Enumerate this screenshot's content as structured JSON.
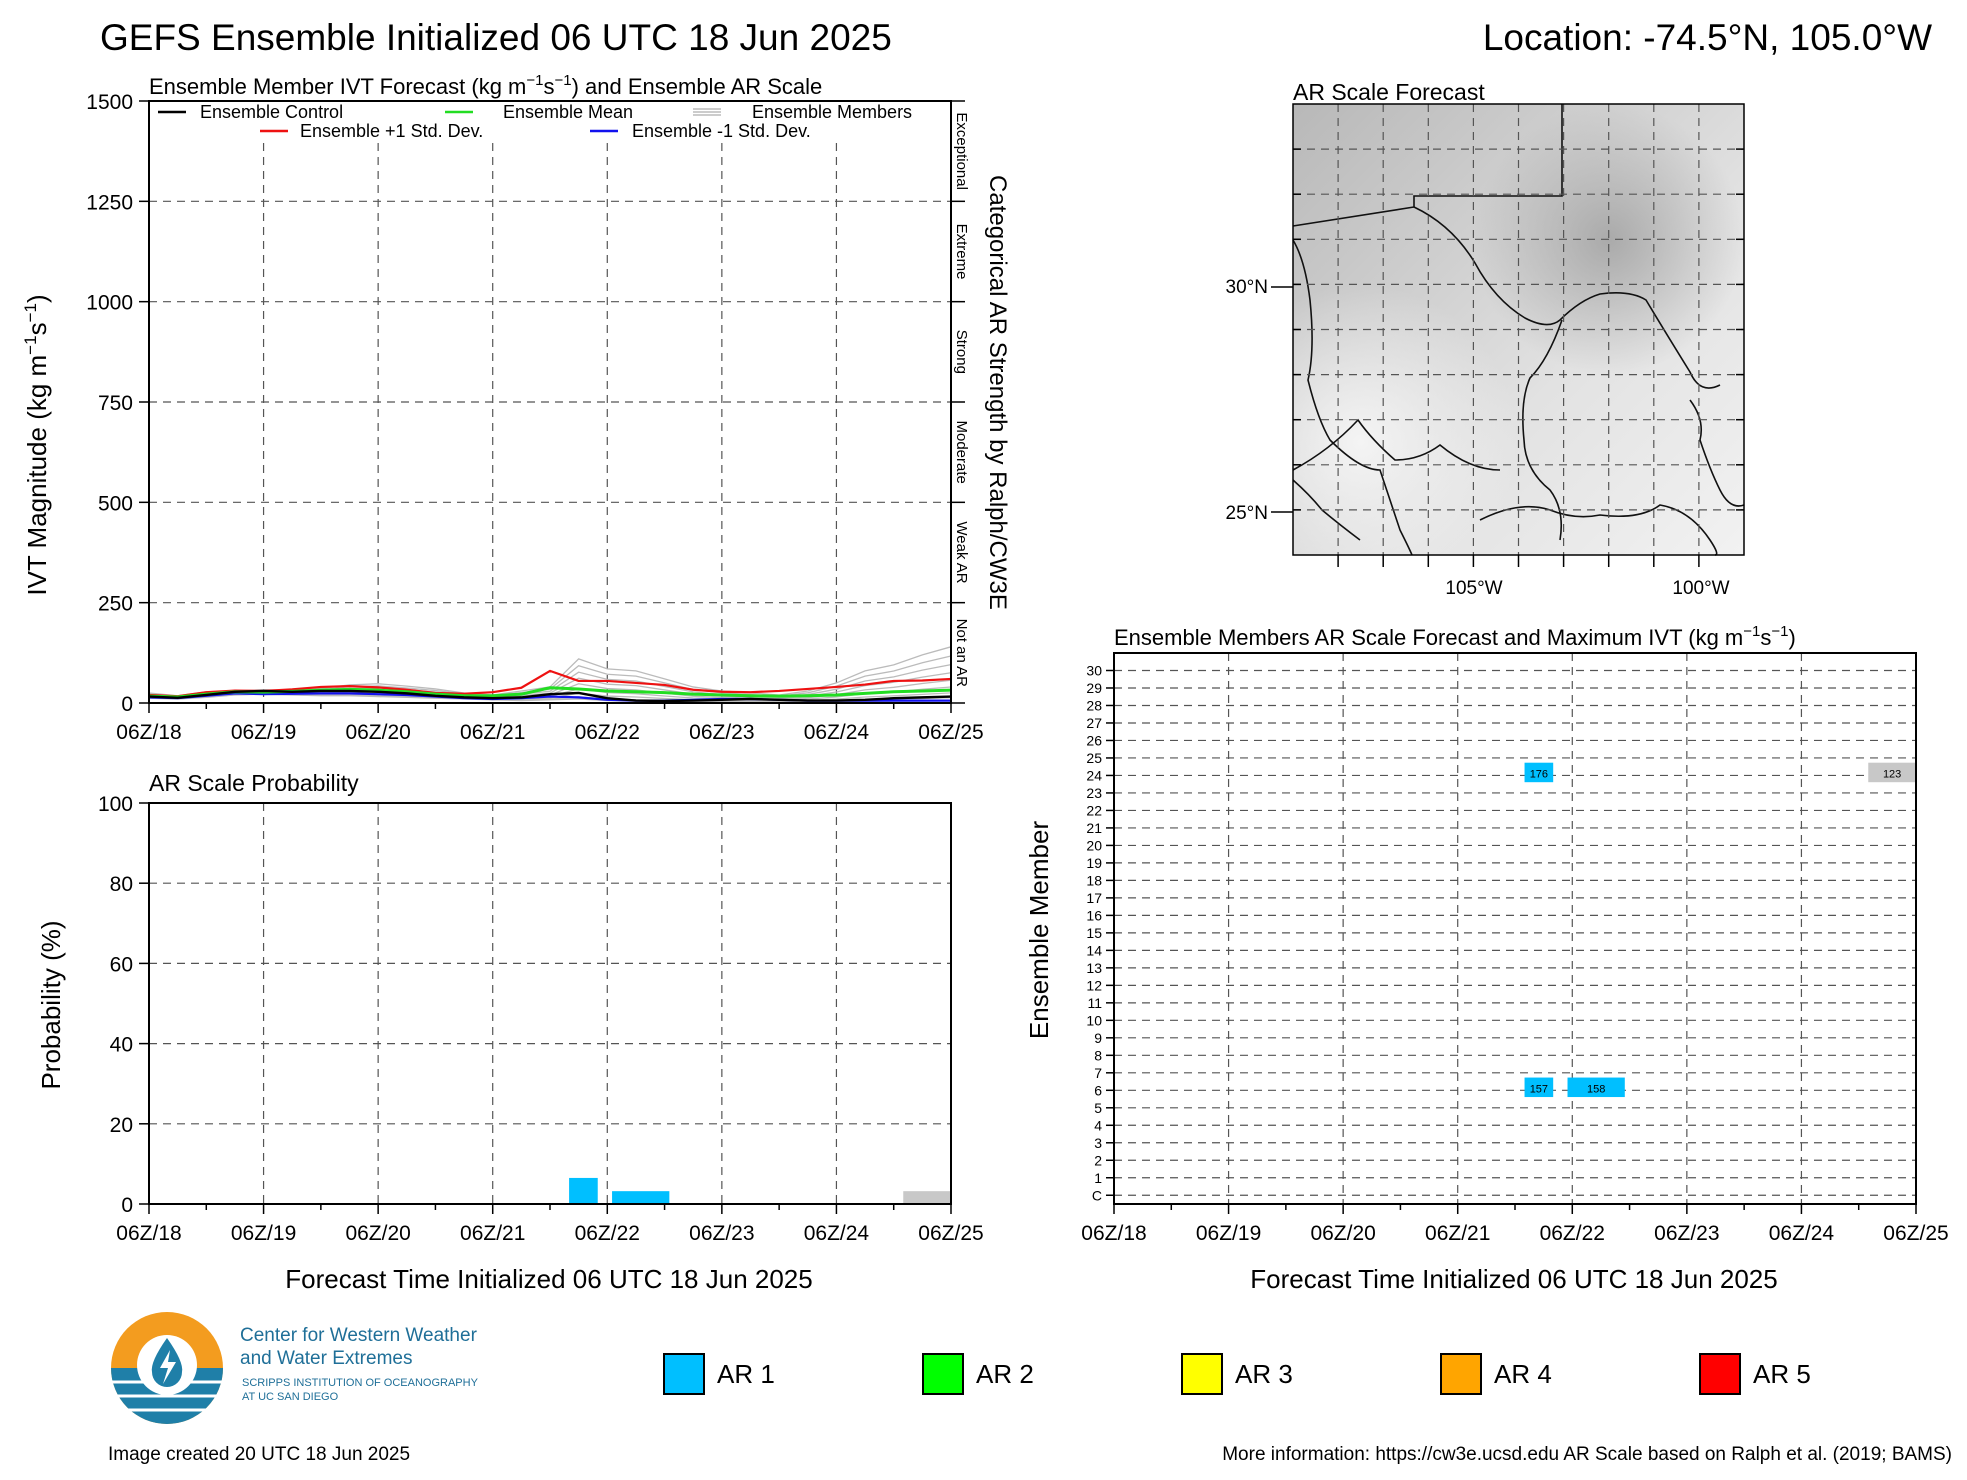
{
  "header": {
    "title": "GEFS Ensemble Initialized 06 UTC 18 Jun 2025",
    "location": "Location: -74.5°N, 105.0°W"
  },
  "colors": {
    "control": "#000000",
    "mean": "#22dd22",
    "members": "#bbbbbb",
    "plus_std": "#ee1111",
    "minus_std": "#1111ee",
    "ar1": "#00bfff",
    "ar2": "#00ff00",
    "ar3": "#ffff00",
    "ar4": "#ffa500",
    "ar5": "#ff0000",
    "not_ar": "#c8c8c8"
  },
  "chart_data": [
    {
      "type": "line",
      "title_prefix": "Ensemble Member IVT Forecast (kg m",
      "title_suffix": ") and Ensemble AR Scale",
      "ylabel": "IVT Magnitude (kg m",
      "ylim": [
        0,
        1500
      ],
      "yticks": [
        "0",
        "250",
        "500",
        "750",
        "1000",
        "1250",
        "1500"
      ],
      "xlim": [
        0,
        168
      ],
      "xticks": [
        "06Z/18",
        "06Z/19",
        "06Z/20",
        "06Z/21",
        "06Z/22",
        "06Z/23",
        "06Z/24",
        "06Z/25"
      ],
      "right_label": "Categorical AR Strength by Ralph/CW3E",
      "categories": [
        "Not an AR",
        "Weak AR",
        "Moderate",
        "Strong",
        "Extreme",
        "Exceptional"
      ],
      "legend": {
        "control": "Ensemble Control",
        "mean": "Ensemble Mean",
        "members": "Ensemble Members",
        "plus_std": "Ensemble +1 Std. Dev.",
        "minus_std": "Ensemble -1 Std. Dev."
      },
      "x": [
        0,
        6,
        12,
        18,
        24,
        30,
        36,
        42,
        48,
        54,
        60,
        66,
        72,
        78,
        84,
        90,
        96,
        102,
        108,
        114,
        120,
        126,
        132,
        138,
        144,
        150,
        156,
        162,
        168
      ],
      "series": [
        {
          "key": "members_hi",
          "values": [
            25,
            18,
            28,
            30,
            33,
            32,
            36,
            45,
            48,
            42,
            35,
            25,
            20,
            30,
            40,
            110,
            85,
            80,
            60,
            40,
            30,
            25,
            20,
            30,
            50,
            80,
            95,
            120,
            140
          ]
        },
        {
          "key": "members_lo",
          "values": [
            12,
            10,
            14,
            20,
            22,
            20,
            18,
            18,
            16,
            14,
            12,
            10,
            8,
            6,
            8,
            10,
            6,
            4,
            3,
            3,
            3,
            2,
            2,
            3,
            3,
            4,
            5,
            5,
            6
          ]
        },
        {
          "key": "plus_std",
          "values": [
            20,
            17,
            27,
            31,
            30,
            34,
            40,
            42,
            39,
            33,
            25,
            23,
            27,
            38,
            80,
            55,
            55,
            50,
            45,
            33,
            28,
            27,
            30,
            35,
            40,
            46,
            55,
            56,
            60
          ]
        },
        {
          "key": "mean",
          "values": [
            17,
            15,
            22,
            28,
            27,
            29,
            32,
            34,
            32,
            28,
            22,
            18,
            18,
            22,
            38,
            35,
            30,
            28,
            26,
            22,
            20,
            18,
            17,
            18,
            20,
            24,
            28,
            30,
            32
          ]
        },
        {
          "key": "minus_std",
          "values": [
            14,
            12,
            18,
            24,
            22,
            23,
            24,
            24,
            22,
            20,
            16,
            12,
            10,
            12,
            16,
            14,
            8,
            6,
            6,
            8,
            10,
            10,
            8,
            6,
            6,
            6,
            6,
            6,
            6
          ]
        },
        {
          "key": "control",
          "values": [
            16,
            13,
            20,
            28,
            30,
            28,
            30,
            30,
            28,
            24,
            18,
            14,
            12,
            14,
            22,
            25,
            12,
            6,
            5,
            6,
            8,
            10,
            8,
            6,
            6,
            8,
            12,
            14,
            16
          ]
        }
      ]
    },
    {
      "type": "bar",
      "title": "AR Scale Probability",
      "ylabel": "Probability (%)",
      "xlabel": "Forecast Time Initialized 06 UTC 18 Jun 2025",
      "ylim": [
        0,
        100
      ],
      "yticks": [
        "0",
        "20",
        "40",
        "60",
        "80",
        "100"
      ],
      "xlim": [
        0,
        168
      ],
      "xticks": [
        "06Z/18",
        "06Z/19",
        "06Z/20",
        "06Z/21",
        "06Z/22",
        "06Z/23",
        "06Z/24",
        "06Z/25"
      ],
      "bars": [
        {
          "x0": 88,
          "x1": 94,
          "value": 6.5,
          "cat": "ar1"
        },
        {
          "x0": 97,
          "x1": 109,
          "value": 3.2,
          "cat": "ar1"
        },
        {
          "x0": 158,
          "x1": 168,
          "value": 3.2,
          "cat": "not_ar"
        }
      ]
    },
    {
      "type": "heatmap",
      "title_prefix": "Ensemble Members AR Scale Forecast and Maximum IVT (kg m",
      "title_suffix": ")",
      "ylabel": "Ensemble Member",
      "xlabel": "Forecast Time Initialized 06 UTC 18 Jun 2025",
      "xlim": [
        0,
        168
      ],
      "xticks": [
        "06Z/18",
        "06Z/19",
        "06Z/20",
        "06Z/21",
        "06Z/22",
        "06Z/23",
        "06Z/24",
        "06Z/25"
      ],
      "members": [
        "C",
        "1",
        "2",
        "3",
        "4",
        "5",
        "6",
        "7",
        "8",
        "9",
        "10",
        "11",
        "12",
        "13",
        "14",
        "15",
        "16",
        "17",
        "18",
        "19",
        "20",
        "21",
        "22",
        "23",
        "24",
        "25",
        "26",
        "27",
        "28",
        "29",
        "30"
      ],
      "events": [
        {
          "member": 24,
          "x0": 86,
          "x1": 92,
          "label": "176",
          "cat": "ar1"
        },
        {
          "member": 24,
          "x0": 158,
          "x1": 168,
          "label": "123",
          "cat": "not_ar"
        },
        {
          "member": 6,
          "x0": 86,
          "x1": 92,
          "label": "157",
          "cat": "ar1"
        },
        {
          "member": 6,
          "x0": 95,
          "x1": 107,
          "label": "158",
          "cat": "ar1"
        }
      ]
    }
  ],
  "map": {
    "title": "AR Scale Forecast",
    "lat_labels": [
      "30°N",
      "25°N"
    ],
    "lon_labels": [
      "105°W",
      "100°W"
    ]
  },
  "legend_ar": [
    "AR 1",
    "AR 2",
    "AR 3",
    "AR 4",
    "AR 5"
  ],
  "logo": {
    "line1": "Center for Western Weather",
    "line2": "and Water Extremes",
    "line3": "SCRIPPS INSTITUTION OF OCEANOGRAPHY",
    "line4": "AT UC SAN DIEGO"
  },
  "footer": {
    "created": "Image created 20 UTC 18 Jun 2025",
    "info": "More information: https://cw3e.ucsd.edu AR Scale based on Ralph et al. (2019; BAMS)"
  }
}
